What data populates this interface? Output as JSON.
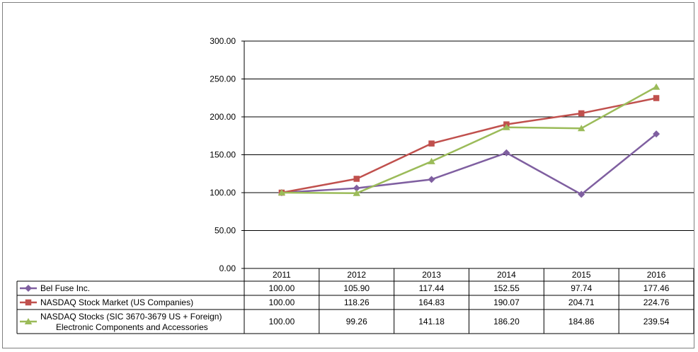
{
  "chart_data": {
    "type": "line",
    "title": "",
    "xlabel": "",
    "ylabel": "",
    "categories": [
      "2011",
      "2012",
      "2013",
      "2014",
      "2015",
      "2016"
    ],
    "ylim": [
      0,
      300
    ],
    "yticks": [
      "0.00",
      "50.00",
      "100.00",
      "150.00",
      "200.00",
      "250.00",
      "300.00"
    ],
    "grid": true,
    "legend": "data-table",
    "series": [
      {
        "name": "Bel Fuse Inc.",
        "color": "#7f5fa0",
        "marker": "diamond",
        "values": [
          100.0,
          105.9,
          117.44,
          152.55,
          97.74,
          177.46
        ],
        "labels": [
          "100.00",
          "105.90",
          "117.44",
          "152.55",
          "97.74",
          "177.46"
        ]
      },
      {
        "name": "NASDAQ Stock Market (US Companies)",
        "color": "#c0504d",
        "marker": "square",
        "values": [
          100.0,
          118.26,
          164.83,
          190.07,
          204.71,
          224.76
        ],
        "labels": [
          "100.00",
          "118.26",
          "164.83",
          "190.07",
          "204.71",
          "224.76"
        ]
      },
      {
        "name": "NASDAQ Stocks (SIC 3670-3679 US + Foreign)",
        "name_line2": "Electronic Components and Accessories",
        "color": "#9bbb59",
        "marker": "triangle",
        "values": [
          100.0,
          99.26,
          141.18,
          186.2,
          184.86,
          239.54
        ],
        "labels": [
          "100.00",
          "99.26",
          "141.18",
          "186.20",
          "184.86",
          "239.54"
        ]
      }
    ]
  }
}
